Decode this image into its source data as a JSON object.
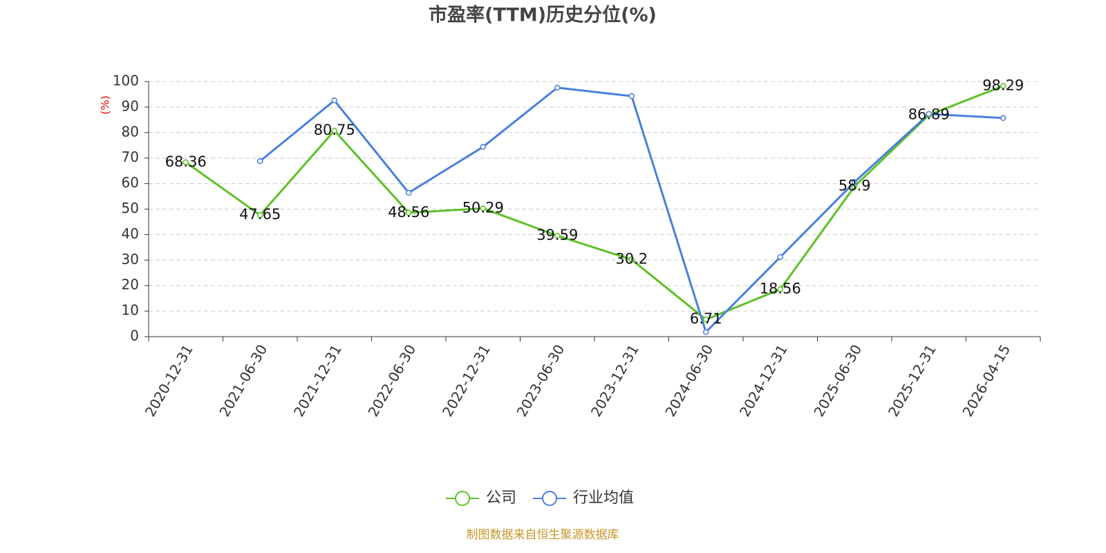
{
  "chart_data": {
    "type": "line",
    "title": "市盈率(TTM)历史分位(%)",
    "y_label": "(%)",
    "categories": [
      "2020-12-31",
      "2021-06-30",
      "2021-12-31",
      "2022-06-30",
      "2022-12-31",
      "2023-06-30",
      "2023-12-31",
      "2024-06-30",
      "2024-12-31",
      "2025-06-30",
      "2025-12-31",
      "2026-04-15"
    ],
    "series": [
      {
        "name": "公司",
        "color": "#5cc126",
        "values": [
          68.36,
          47.65,
          80.75,
          48.56,
          50.29,
          39.59,
          30.2,
          6.71,
          18.56,
          58.9,
          86.89,
          98.29
        ],
        "labels": true
      },
      {
        "name": "行业均值",
        "color": "#4a7fdb",
        "values": [
          null,
          68.8,
          92.6,
          56.4,
          74.4,
          97.6,
          94.3,
          1.8,
          31.2,
          60.6,
          87.3,
          85.7
        ],
        "labels": false
      }
    ],
    "ylim": [
      0,
      100
    ],
    "yticks": [
      0,
      10,
      20,
      30,
      40,
      50,
      60,
      70,
      80,
      90,
      100
    ],
    "grid": true,
    "legend": "bottom",
    "source": "制图数据来自恒生聚源数据库"
  }
}
